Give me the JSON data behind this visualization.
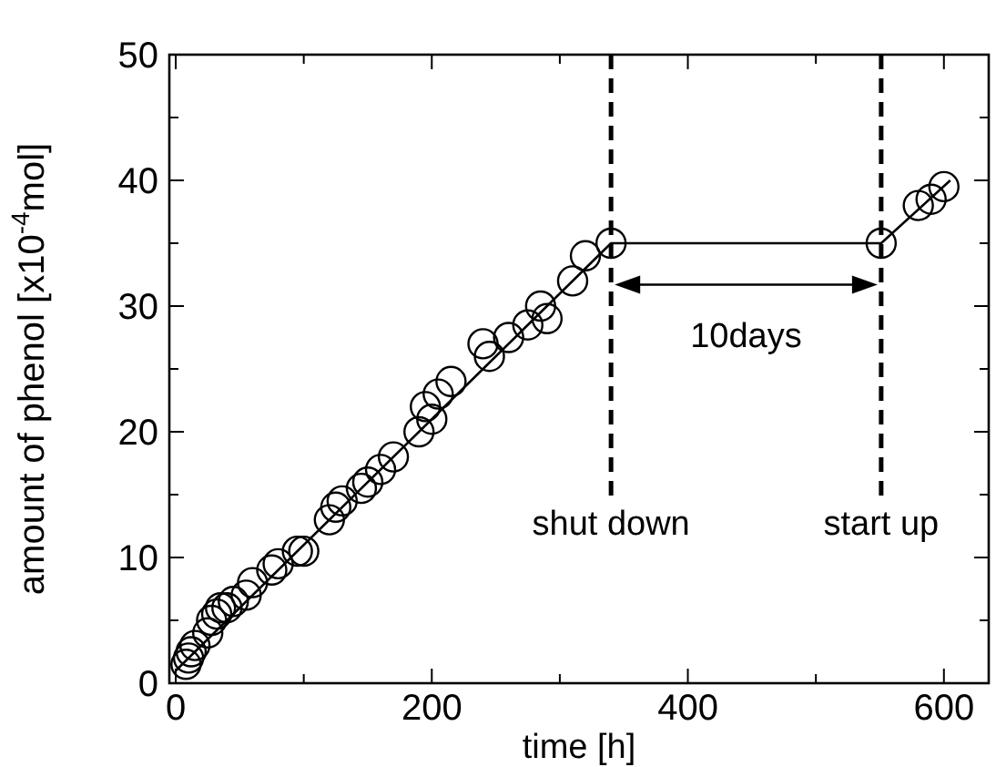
{
  "chart_data": {
    "type": "scatter",
    "xlabel": "time [h]",
    "ylabel": "amount of phenol [x10$^{-4}$mol]",
    "xlim": [
      -5,
      635
    ],
    "ylim": [
      0,
      50
    ],
    "xticks": [
      0,
      {
        "value": 100,
        "label": null
      },
      200,
      {
        "value": 300,
        "label": null
      },
      400,
      {
        "value": 500,
        "label": null
      },
      600
    ],
    "yticks": [
      0,
      {
        "value": 5,
        "label": null
      },
      10,
      {
        "value": 15,
        "label": null
      },
      20,
      {
        "value": 25,
        "label": null
      },
      30,
      {
        "value": 35,
        "label": null
      },
      40,
      {
        "value": 45,
        "label": null
      },
      50
    ],
    "grid": false,
    "series": [
      {
        "color": "#000000",
        "marker": "circle",
        "x": [
          8,
          10,
          12,
          15,
          25,
          28,
          32,
          35,
          40,
          45,
          55,
          60,
          75,
          80,
          95,
          100,
          120,
          125,
          130,
          145,
          150,
          160,
          170,
          190,
          195,
          200,
          205,
          215,
          240,
          245,
          260,
          275,
          285,
          290,
          310,
          320,
          340,
          551,
          580,
          590,
          600
        ],
        "values": [
          1.5,
          2,
          2.5,
          3,
          4,
          5,
          5.5,
          6,
          6,
          6.5,
          7,
          8,
          9,
          9.5,
          10.5,
          10.5,
          13,
          14,
          14.5,
          15.5,
          16,
          17,
          18,
          20,
          22,
          21,
          23,
          24,
          27,
          26,
          27.5,
          28.5,
          30,
          29,
          32,
          34,
          35,
          35,
          38,
          38.5,
          39.5
        ]
      },
      {
        "type": "line",
        "color": "#000000",
        "marker": "none",
        "line_style": "solid",
        "x": [
          0,
          340,
          551,
          605
        ],
        "values": [
          1,
          35,
          35,
          40
        ]
      }
    ],
    "ref_lines": [
      {
        "axis": "x",
        "value": 340,
        "label": "shut down",
        "line_style": "dashed",
        "color": "#000000"
      },
      {
        "axis": "x",
        "value": 551,
        "label": "start up",
        "line_style": "dashed",
        "color": "#000000"
      }
    ],
    "annotations": [
      "10days"
    ]
  }
}
